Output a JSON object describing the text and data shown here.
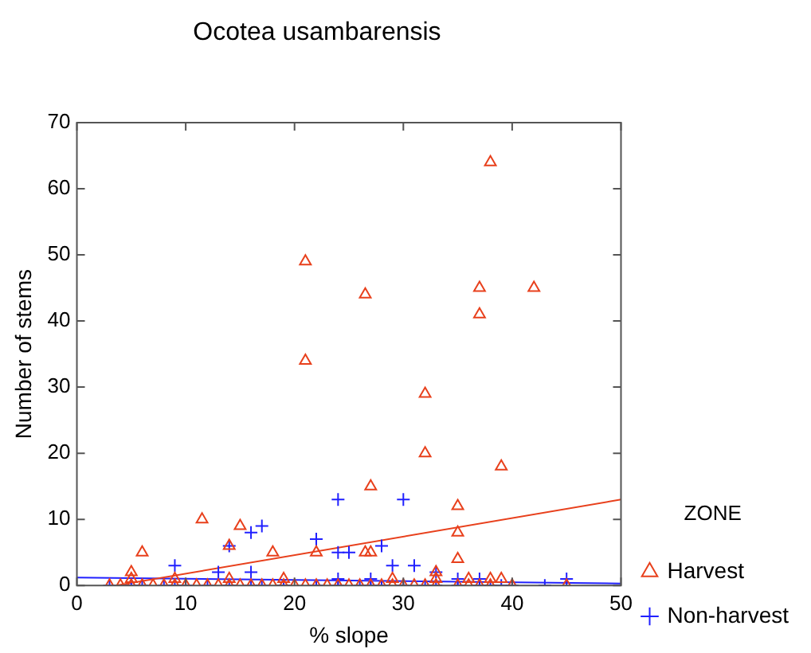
{
  "chart_data": {
    "type": "scatter",
    "title": "Ocotea usambarensis",
    "xlabel": "% slope",
    "ylabel": "Number of stems",
    "legend_title": "ZONE",
    "legend": "right",
    "grid": false,
    "xlim": [
      0,
      50
    ],
    "xticks": [
      0,
      10,
      20,
      30,
      40,
      50
    ],
    "ylim": [
      0,
      70
    ],
    "yticks": [
      0,
      10,
      20,
      30,
      40,
      50,
      60,
      70
    ],
    "series": [
      {
        "name": "Harvest",
        "color": "#e8401c",
        "marker": "triangle",
        "x": [
          38,
          21,
          26.5,
          37,
          42,
          37,
          21,
          32,
          32,
          39,
          27,
          35,
          11.5,
          15,
          35,
          6,
          14,
          18,
          22,
          26.5,
          27,
          35,
          5,
          33,
          3,
          4,
          5,
          6,
          7,
          8,
          9,
          10,
          11,
          12,
          13,
          14,
          15,
          16,
          17,
          18,
          19,
          20,
          21,
          22,
          23,
          24,
          25,
          26,
          27,
          28,
          29,
          30,
          31,
          32,
          33,
          35,
          36,
          37,
          38,
          40,
          45,
          5,
          9,
          14,
          19,
          29,
          33,
          36,
          38,
          39
        ],
        "values": [
          64,
          49,
          44,
          45,
          45,
          41,
          34,
          29,
          20,
          18,
          15,
          12,
          10,
          9,
          8,
          5,
          6,
          5,
          5,
          5,
          5,
          4,
          2,
          2,
          0,
          0,
          0,
          0,
          0,
          0,
          0,
          0,
          0,
          0,
          0,
          0,
          0,
          0,
          0,
          0,
          0,
          0,
          0,
          0,
          0,
          0,
          0,
          0,
          0,
          0,
          0,
          0,
          0,
          0,
          0,
          0,
          0,
          0,
          0,
          0,
          0,
          1,
          1,
          1,
          1,
          1,
          1,
          1,
          1,
          1
        ]
      },
      {
        "name": "Non-harvest",
        "color": "#2020ff",
        "marker": "cross",
        "x": [
          24,
          30,
          17,
          16,
          14,
          22,
          24,
          25,
          28,
          9,
          29,
          31,
          13,
          16,
          33,
          3,
          5,
          6,
          8,
          9,
          10,
          12,
          14,
          16,
          17,
          19,
          22,
          24,
          26,
          27,
          28,
          30,
          32,
          33,
          35,
          37,
          38,
          39,
          40,
          43,
          24,
          27,
          35,
          37,
          45
        ],
        "values": [
          13,
          13,
          9,
          8,
          6,
          7,
          5,
          5,
          6,
          3,
          3,
          3,
          2,
          2,
          2,
          0,
          0,
          0,
          0,
          0,
          0,
          0,
          0,
          0,
          0,
          0,
          0,
          0,
          0,
          0,
          0,
          0,
          0,
          0,
          0,
          0,
          0,
          0,
          0,
          0,
          1,
          1,
          1,
          1,
          1
        ]
      },
      {
        "type": "line",
        "color": "#e8401c",
        "marker": "none",
        "x": [
          3.6,
          50
        ],
        "values": [
          0,
          13
        ]
      },
      {
        "type": "line",
        "color": "#2020ff",
        "marker": "none",
        "x": [
          0,
          50
        ],
        "values": [
          1.2,
          0.3
        ]
      }
    ]
  }
}
